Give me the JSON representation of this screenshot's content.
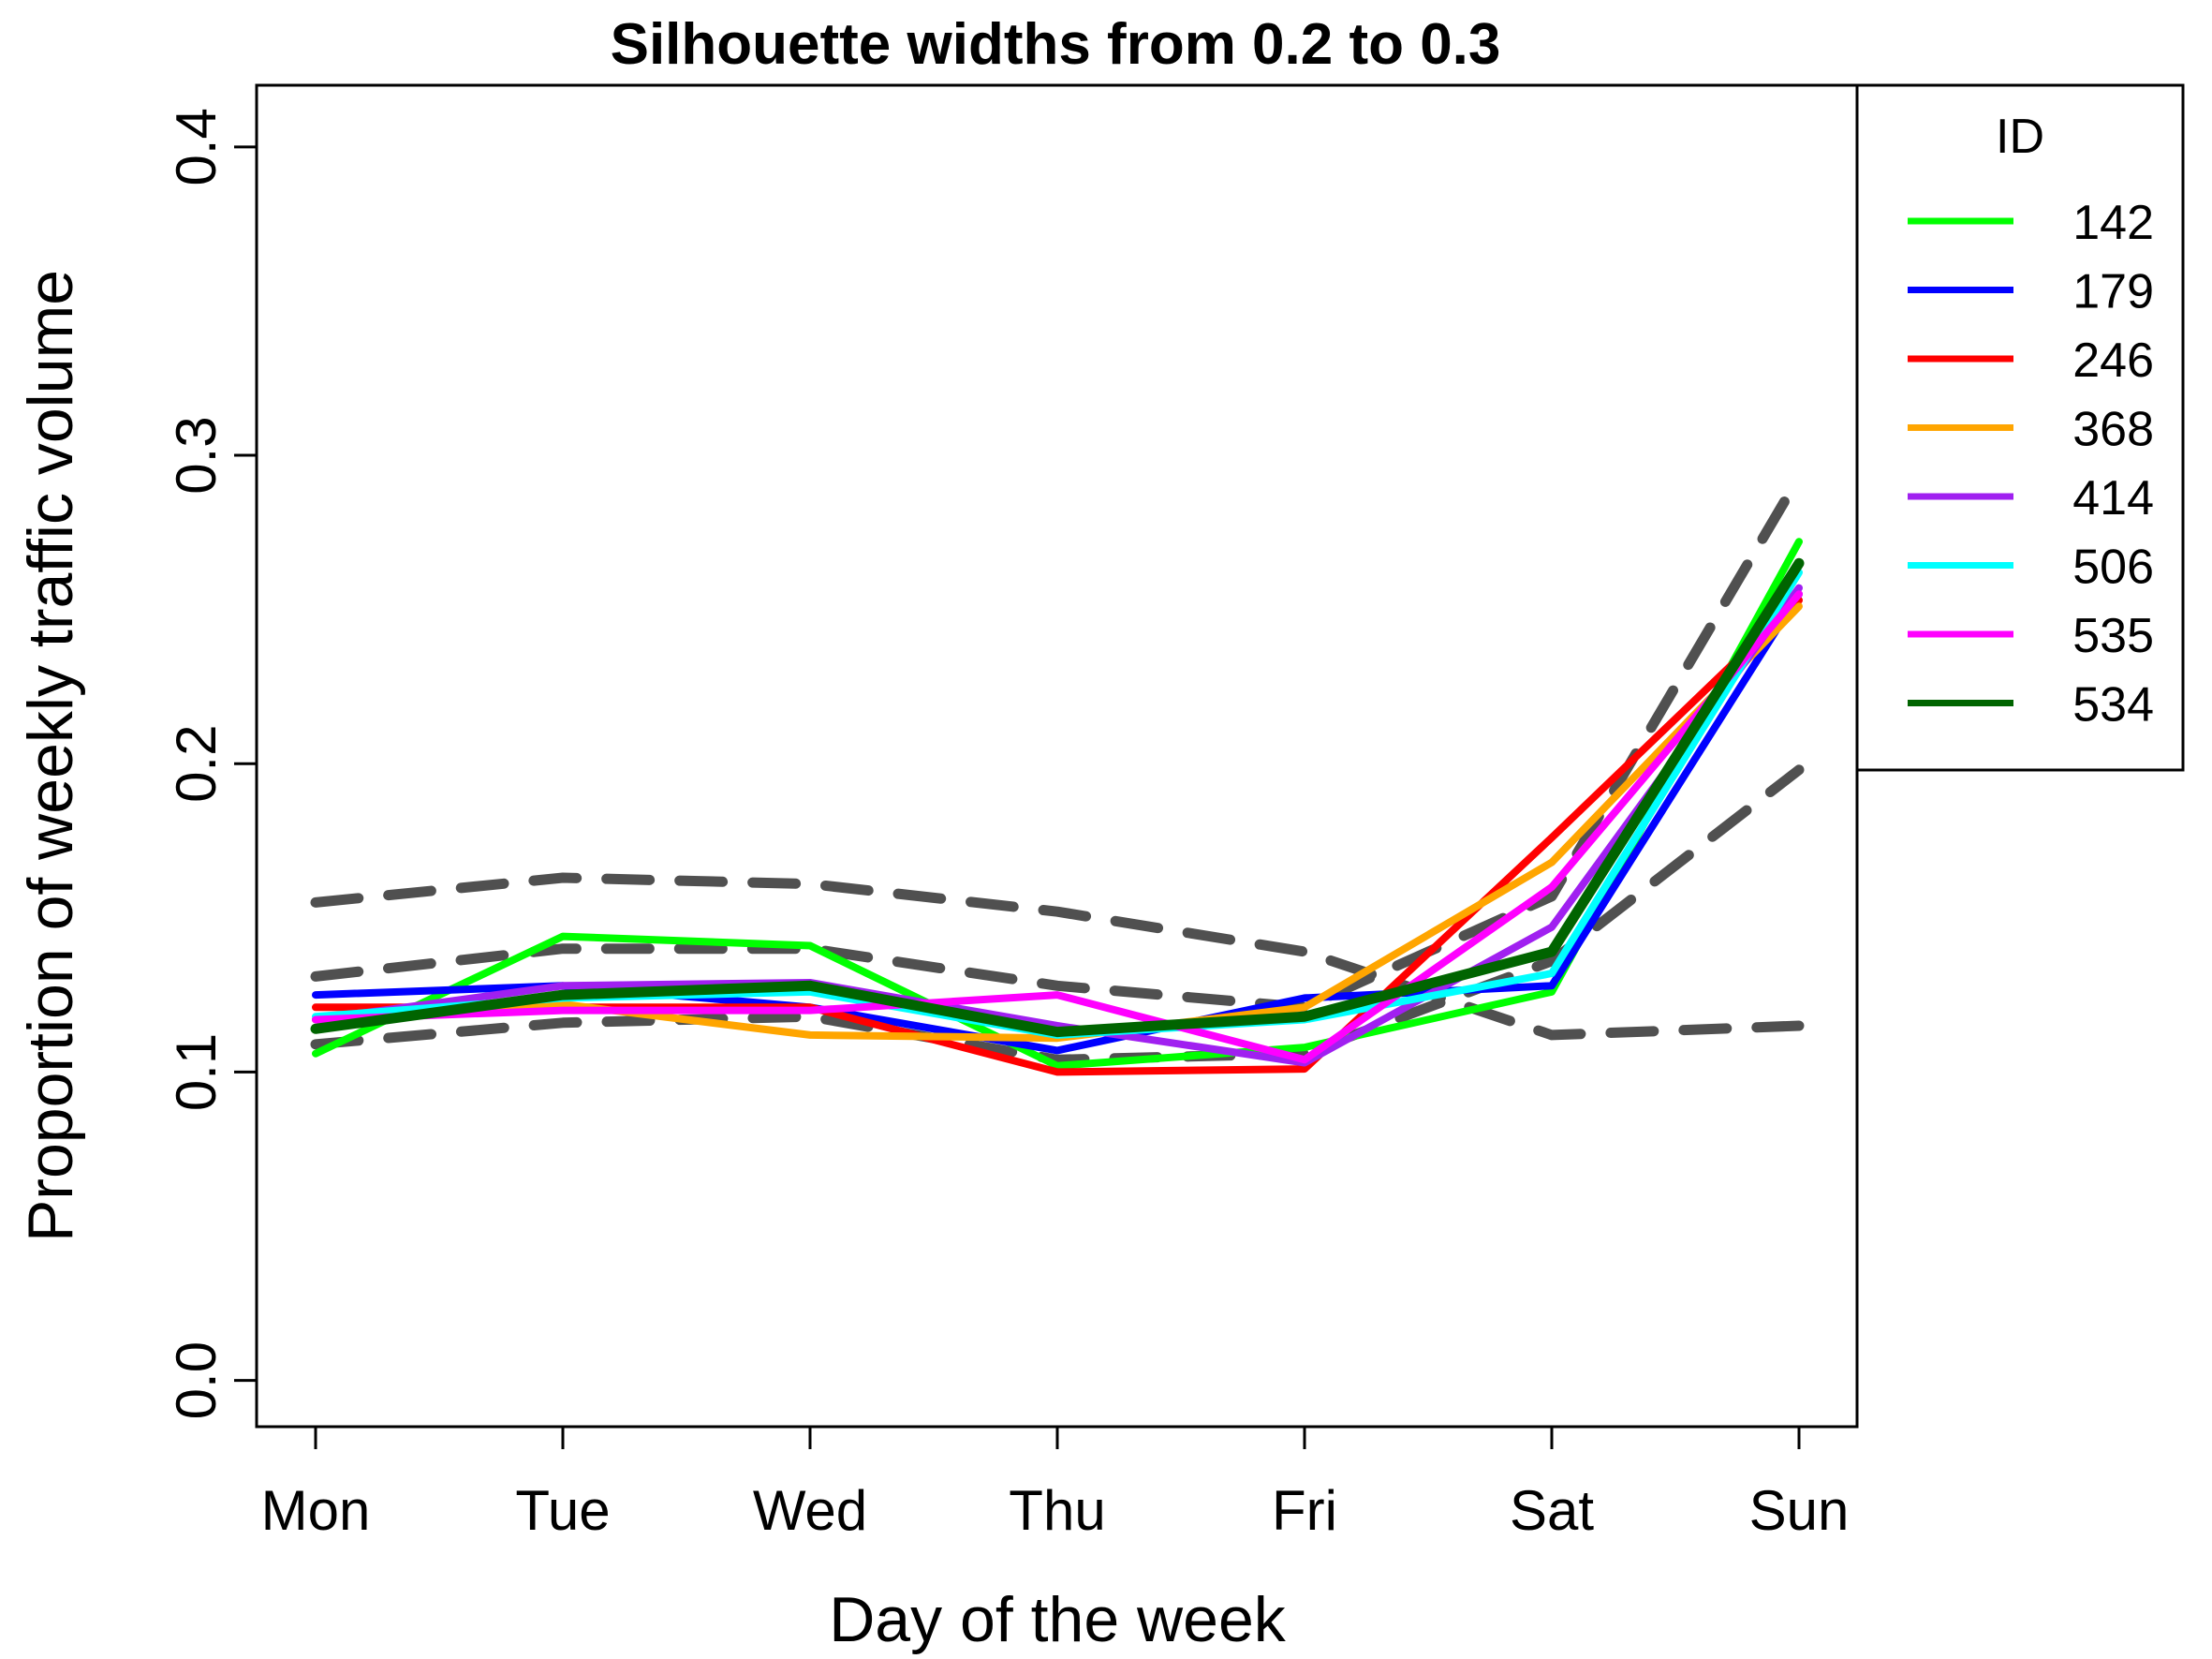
{
  "chart_data": {
    "type": "line",
    "title": "Silhouette widths from 0.2 to 0.3",
    "xlabel": "Day of the week",
    "ylabel": "Proportion of weekly traffic volume",
    "categories": [
      "Mon",
      "Tue",
      "Wed",
      "Thu",
      "Fri",
      "Sat",
      "Sun"
    ],
    "ylim": [
      -0.015,
      0.42
    ],
    "yticks": [
      0.0,
      0.1,
      0.2,
      0.3,
      0.4
    ],
    "ytick_labels": [
      "0.0",
      "0.1",
      "0.2",
      "0.3",
      "0.4"
    ],
    "grid": false,
    "legend": {
      "title": "ID",
      "placement": "right"
    },
    "series": [
      {
        "name": "142",
        "color": "#00ff00",
        "values": [
          0.106,
          0.144,
          0.141,
          0.102,
          0.108,
          0.126,
          0.272
        ]
      },
      {
        "name": "179",
        "color": "#0000ff",
        "values": [
          0.125,
          0.128,
          0.121,
          0.107,
          0.124,
          0.128,
          0.255
        ]
      },
      {
        "name": "246",
        "color": "#ff0000",
        "values": [
          0.121,
          0.121,
          0.121,
          0.1,
          0.101,
          0.176,
          0.253
        ]
      },
      {
        "name": "368",
        "color": "#ffa500",
        "values": [
          0.117,
          0.122,
          0.112,
          0.111,
          0.121,
          0.168,
          0.251
        ]
      },
      {
        "name": "414",
        "color": "#a020f0",
        "values": [
          0.117,
          0.128,
          0.129,
          0.115,
          0.103,
          0.147,
          0.257
        ]
      },
      {
        "name": "506",
        "color": "#00ffff",
        "values": [
          0.118,
          0.124,
          0.126,
          0.112,
          0.117,
          0.132,
          0.262
        ]
      },
      {
        "name": "535",
        "color": "#ff00ff",
        "values": [
          0.117,
          0.12,
          0.12,
          0.125,
          0.104,
          0.16,
          0.255
        ]
      },
      {
        "name": "534",
        "color": "#006400",
        "values": [
          0.114,
          0.125,
          0.128,
          0.113,
          0.118,
          0.139,
          0.265
        ]
      }
    ],
    "reference_lines": {
      "color": "#505050",
      "style": "dashed",
      "lines": [
        [
          0.155,
          0.163,
          0.161,
          0.152,
          0.139,
          0.112,
          0.115
        ],
        [
          0.131,
          0.14,
          0.14,
          0.128,
          0.121,
          0.157,
          0.293
        ],
        [
          0.109,
          0.116,
          0.118,
          0.104,
          0.106,
          0.136,
          0.198
        ]
      ]
    }
  }
}
